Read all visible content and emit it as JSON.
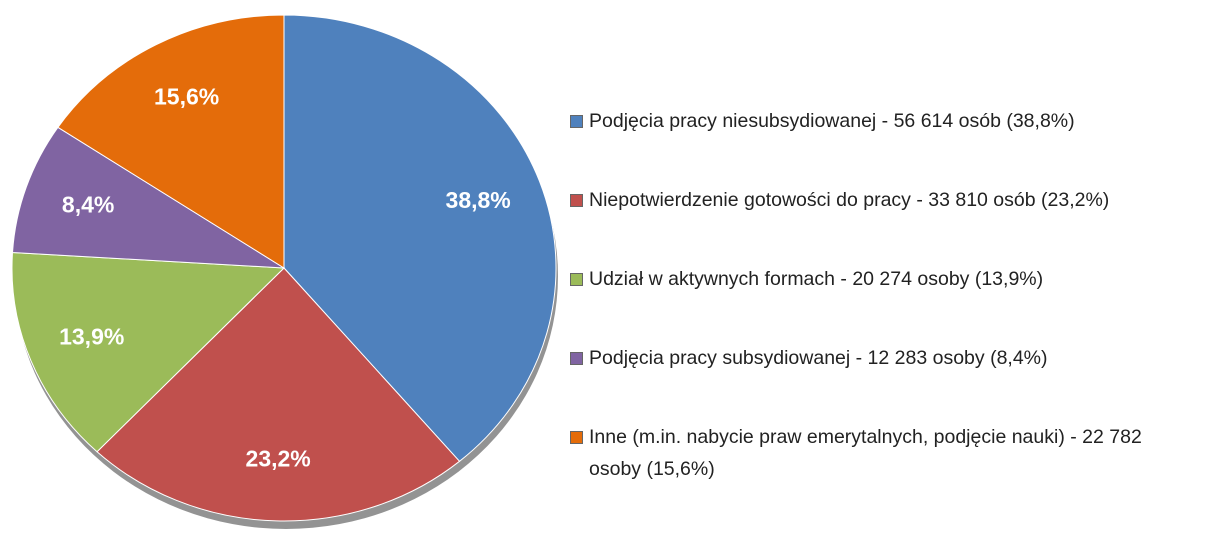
{
  "chart_data": {
    "type": "pie",
    "categories": [
      "Podjęcia pracy niesubsydiowanej - 56 614 osób (38,8%)",
      "Niepotwierdzenie gotowości do pracy - 33 810 osób (23,2%)",
      "Udział w aktywnych formach - 20 274 osoby (13,9%)",
      "Podjęcia pracy subsydiowanej - 12 283 osoby (8,4%)",
      "Inne (m.in. nabycie praw emerytalnych, podjęcie nauki) - 22 782 osoby (15,6%)"
    ],
    "values": [
      38.8,
      23.2,
      13.9,
      8.4,
      15.6
    ],
    "value_labels": [
      "38,8%",
      "23,2%",
      "13,9%",
      "8,4%",
      "15,6%"
    ],
    "colors": [
      "#4f81bd",
      "#c0504d",
      "#9bbb59",
      "#8064a2",
      "#e46c0a"
    ],
    "legend": "right"
  }
}
